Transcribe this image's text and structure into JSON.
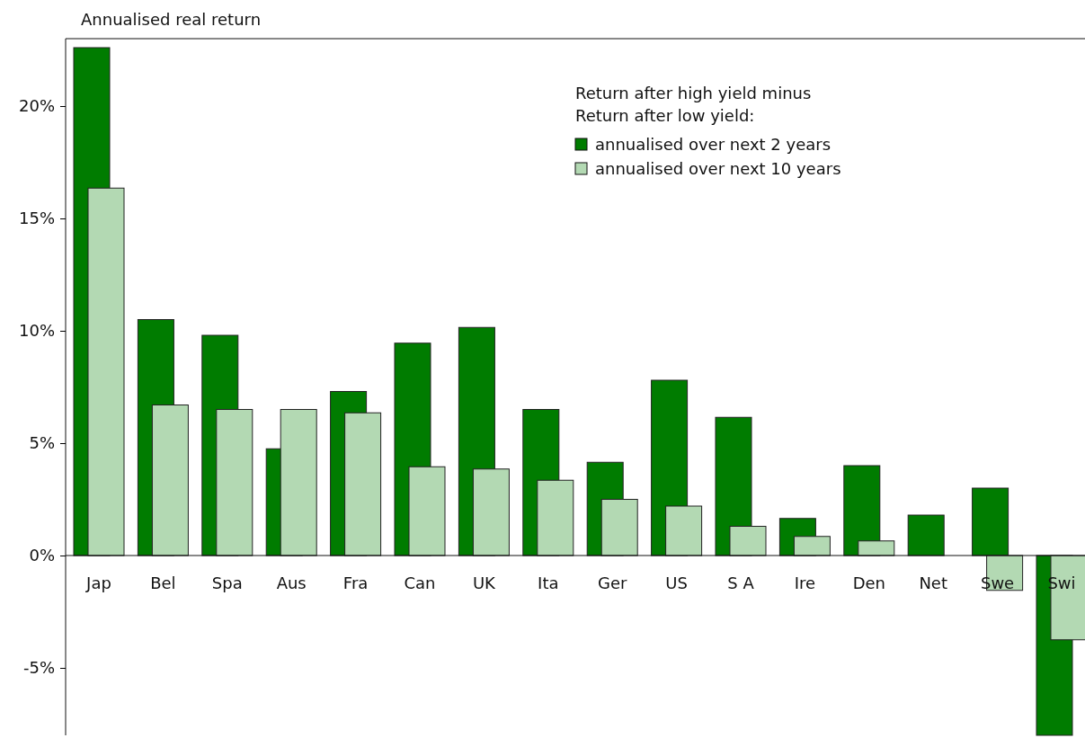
{
  "chart_data": {
    "type": "bar",
    "ylabel": "Annualised real return",
    "legend_title": "Return after high yield minus Return after low yield:",
    "categories": [
      "Jap",
      "Bel",
      "Spa",
      "Aus",
      "Fra",
      "Can",
      "UK",
      "Ita",
      "Ger",
      "US",
      "S A",
      "Ire",
      "Den",
      "Net",
      "Swe",
      "Swi"
    ],
    "series": [
      {
        "name": "annualised over next 2 years",
        "color": "#007c00",
        "values": [
          22.6,
          10.5,
          9.8,
          4.75,
          7.3,
          9.45,
          10.15,
          6.5,
          4.15,
          7.8,
          6.15,
          1.65,
          4.0,
          1.8,
          3.0,
          -8.0
        ]
      },
      {
        "name": "annualised over next 10 years",
        "color": "#b3d9b3",
        "values": [
          16.35,
          6.7,
          6.5,
          6.5,
          6.35,
          3.95,
          3.85,
          3.35,
          2.5,
          2.2,
          1.3,
          0.85,
          0.65,
          null,
          -1.55,
          -3.75
        ]
      }
    ],
    "ylim": [
      -8,
      23
    ],
    "yticks": [
      {
        "value": -5,
        "label": "-5%"
      },
      {
        "value": 0,
        "label": "0%"
      },
      {
        "value": 5,
        "label": "5%"
      },
      {
        "value": 10,
        "label": "10%"
      },
      {
        "value": 15,
        "label": "15%"
      },
      {
        "value": 20,
        "label": "20%"
      }
    ],
    "legend": "top right"
  }
}
